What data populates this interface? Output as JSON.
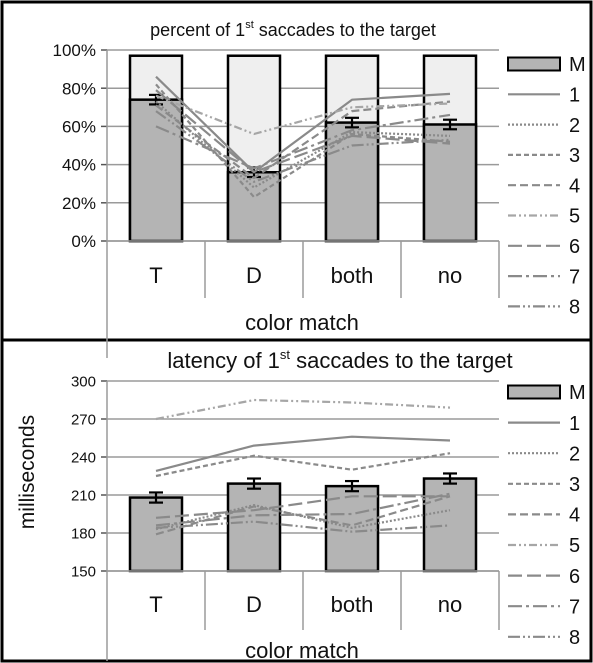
{
  "chart_data": [
    {
      "type": "bar",
      "title": "percent of 1st saccades to the target",
      "title_main": "percent of 1",
      "title_sup": "st",
      "title_rest": " saccades to the target",
      "xlabel": "color match",
      "ylabel": "",
      "categories": [
        "T",
        "D",
        "both",
        "no"
      ],
      "ylim": [
        0,
        100
      ],
      "yticks": [
        0,
        20,
        40,
        60,
        80,
        100
      ],
      "ytick_labels": [
        "0%",
        "20%",
        "40%",
        "60%",
        "80%",
        "100%"
      ],
      "grid": true,
      "legend_position": "right",
      "legend_labels": [
        "M",
        "1",
        "2",
        "3",
        "4",
        "5",
        "6",
        "7",
        "8"
      ],
      "frame_values": [
        97,
        97,
        97,
        97
      ],
      "series": [
        {
          "name": "M",
          "kind": "bar",
          "values": [
            74,
            36,
            62,
            61
          ],
          "errors": [
            2.5,
            2.5,
            2.5,
            2.5
          ]
        },
        {
          "name": "1",
          "kind": "line",
          "values": [
            86,
            36,
            74,
            77
          ]
        },
        {
          "name": "2",
          "kind": "line",
          "values": [
            73,
            28,
            57,
            55
          ]
        },
        {
          "name": "3",
          "kind": "line",
          "values": [
            82,
            23,
            56,
            52
          ]
        },
        {
          "name": "4",
          "kind": "line",
          "values": [
            71,
            33,
            68,
            73
          ]
        },
        {
          "name": "5",
          "kind": "line",
          "values": [
            76,
            56,
            70,
            72
          ]
        },
        {
          "name": "6",
          "kind": "line",
          "values": [
            79,
            36,
            55,
            51
          ]
        },
        {
          "name": "7",
          "kind": "line",
          "values": [
            60,
            38,
            58,
            66
          ]
        },
        {
          "name": "8",
          "kind": "line",
          "values": [
            68,
            31,
            50,
            53
          ]
        }
      ]
    },
    {
      "type": "bar",
      "title": "latency of 1st saccades to the target",
      "title_main": "latency of 1",
      "title_sup": "st",
      "title_rest": " saccades to the target",
      "xlabel": "color match",
      "ylabel": "milliseconds",
      "categories": [
        "T",
        "D",
        "both",
        "no"
      ],
      "ylim": [
        150,
        300
      ],
      "yticks": [
        150,
        180,
        210,
        240,
        270,
        300
      ],
      "ytick_labels": [
        "150",
        "180",
        "210",
        "240",
        "270",
        "300"
      ],
      "grid": true,
      "legend_position": "right",
      "legend_labels": [
        "M",
        "1",
        "2",
        "3",
        "4",
        "5",
        "6",
        "7",
        "8"
      ],
      "series": [
        {
          "name": "M",
          "kind": "bar",
          "values": [
            208,
            219,
            217,
            223
          ],
          "errors": [
            4,
            4,
            4,
            4
          ]
        },
        {
          "name": "1",
          "kind": "line",
          "values": [
            229,
            249,
            256,
            253
          ]
        },
        {
          "name": "2",
          "kind": "line",
          "values": [
            183,
            202,
            184,
            198
          ]
        },
        {
          "name": "3",
          "kind": "line",
          "values": [
            225,
            241,
            230,
            243
          ]
        },
        {
          "name": "4",
          "kind": "line",
          "values": [
            179,
            201,
            186,
            209
          ]
        },
        {
          "name": "5",
          "kind": "line",
          "values": [
            270,
            285,
            283,
            279
          ]
        },
        {
          "name": "6",
          "kind": "line",
          "values": [
            192,
            198,
            209,
            209
          ]
        },
        {
          "name": "7",
          "kind": "line",
          "values": [
            186,
            194,
            195,
            211
          ]
        },
        {
          "name": "8",
          "kind": "line",
          "values": [
            184,
            189,
            181,
            186
          ]
        }
      ]
    }
  ]
}
